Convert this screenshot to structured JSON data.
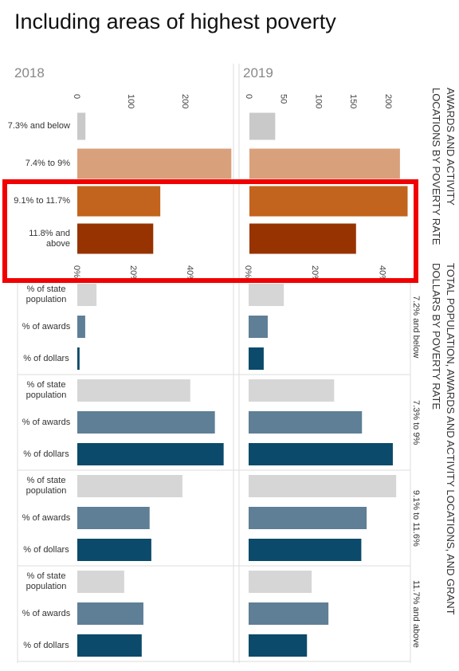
{
  "title": "Including areas of highest poverty",
  "section_titles": [
    "AWARDS AND ACTIVITY LOCATIONS BY POVERTY RATE",
    "TOTAL POPULATION, AWARDS AND ACTIVITY LOCATIONS, AND GRANT DOLLARS BY POVERTY RATE"
  ],
  "chart_data": [
    {
      "type": "bar",
      "orientation": "horizontal",
      "title": "2018",
      "categories": [
        "7.3% and below",
        "7.4% to 9%",
        "9.1% to 11.7%",
        "11.8% and above"
      ],
      "values": [
        15,
        284,
        153,
        140
      ],
      "colors": [
        "#c9c9c9",
        "#d9a07c",
        "#c2641d",
        "#973300"
      ],
      "xlim": [
        0,
        285
      ],
      "xticks": [
        0,
        100,
        200
      ]
    },
    {
      "type": "bar",
      "orientation": "horizontal",
      "title": "2019",
      "values": [
        37,
        216,
        227,
        153
      ],
      "colors": [
        "#c9c9c9",
        "#d9a07c",
        "#c2641d",
        "#973300"
      ],
      "xlim": [
        0,
        231
      ],
      "xticks": [
        0,
        50,
        100,
        150,
        200
      ]
    },
    {
      "type": "grouped-bar",
      "orientation": "horizontal",
      "series": [
        {
          "name": "% of state population",
          "color": "#d6d6d6",
          "values": [
            6.8,
            40,
            37.2,
            16.6
          ]
        },
        {
          "name": "% of awards",
          "color": "#5e7f96",
          "values": [
            2.8,
            48.7,
            25.6,
            23.4
          ]
        },
        {
          "name": "% of dollars",
          "color": "#0b4a6a",
          "values": [
            0.8,
            51.8,
            26.2,
            22.8
          ]
        }
      ],
      "xlim": [
        0,
        55
      ],
      "xticks": [
        {
          "value": 0,
          "label": "0%"
        },
        {
          "value": 20,
          "label": "20%"
        },
        {
          "value": 40,
          "label": "40%"
        }
      ]
    },
    {
      "type": "grouped-bar",
      "orientation": "horizontal",
      "categories": [
        "7.2% and below",
        "7.3% to 9%",
        "9.1% to 11.6%",
        "11.7% and above"
      ],
      "series": [
        {
          "color": "#d6d6d6",
          "values": [
            10.5,
            25.5,
            44,
            18.8
          ]
        },
        {
          "color": "#5e7f96",
          "values": [
            5.7,
            33.8,
            35.2,
            23.8
          ]
        },
        {
          "color": "#0b4a6a",
          "values": [
            4.5,
            43,
            33.6,
            17.4
          ]
        }
      ],
      "xlim": [
        0,
        48
      ],
      "xticks": [
        {
          "value": 0,
          "label": "0%"
        },
        {
          "value": 20,
          "label": "20%"
        },
        {
          "value": 40,
          "label": "40%"
        }
      ]
    }
  ]
}
